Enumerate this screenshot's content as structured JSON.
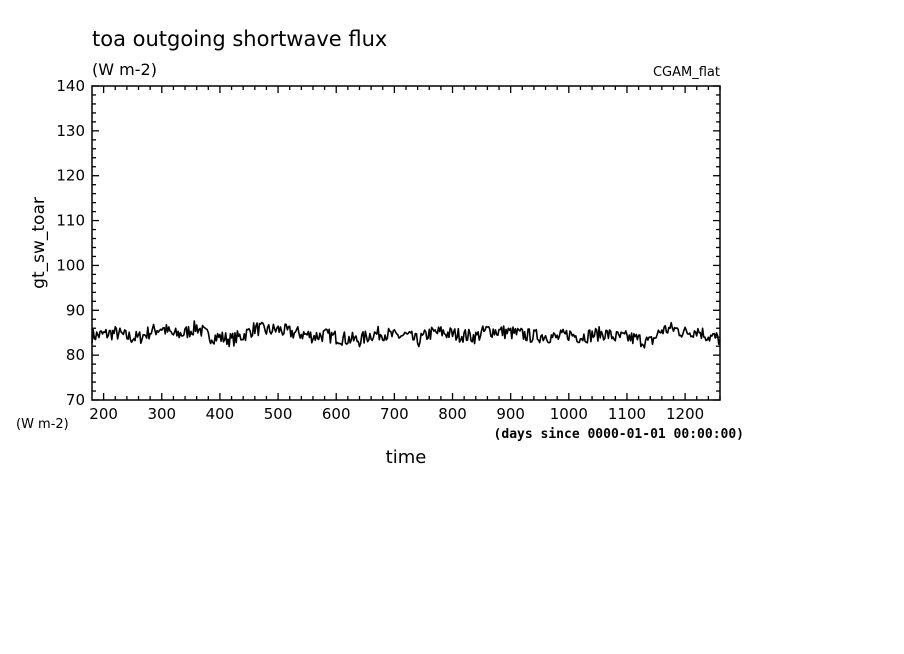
{
  "chart_data": {
    "type": "line",
    "title": "toa outgoing shortwave flux",
    "subtitle": "(W m-2)",
    "run_label": "CGAM_flat",
    "xlabel": "time",
    "x_units": "(days since 0000-01-01 00:00:00)",
    "ylabel": "gt_sw_toar",
    "y_units": "(W m-2)",
    "xlim": [
      180,
      1260
    ],
    "ylim": [
      70,
      140
    ],
    "x_ticks": [
      200,
      300,
      400,
      500,
      600,
      700,
      800,
      900,
      1000,
      1100,
      1200
    ],
    "y_ticks": [
      70,
      80,
      90,
      100,
      110,
      120,
      130,
      140
    ],
    "grid": false,
    "line_color": "#000000",
    "series": [
      {
        "x": [
          180,
          200,
          220,
          240,
          260,
          280,
          300,
          320,
          340,
          360,
          380,
          400,
          420,
          440,
          460,
          480,
          500,
          520,
          540,
          560,
          580,
          600,
          620,
          640,
          660,
          680,
          700,
          720,
          740,
          760,
          780,
          800,
          820,
          840,
          860,
          880,
          900,
          920,
          940,
          960,
          980,
          1000,
          1020,
          1040,
          1060,
          1080,
          1100,
          1120,
          1140,
          1160,
          1180,
          1200,
          1220,
          1240,
          1260
        ],
        "y": [
          84.3,
          84.6,
          85.0,
          84.1,
          83.8,
          85.2,
          86.1,
          84.5,
          84.9,
          86.3,
          84.2,
          84.0,
          83.4,
          84.4,
          86.0,
          85.5,
          85.7,
          85.1,
          84.8,
          84.2,
          84.5,
          84.0,
          83.6,
          83.3,
          84.6,
          84.9,
          84.2,
          84.4,
          83.1,
          84.8,
          85.1,
          84.7,
          84.4,
          84.1,
          85.6,
          85.3,
          85.0,
          84.6,
          84.2,
          84.4,
          83.8,
          84.7,
          84.1,
          84.5,
          84.9,
          84.0,
          83.9,
          83.5,
          82.8,
          85.6,
          85.9,
          85.0,
          85.6,
          84.2,
          83.6
        ]
      }
    ]
  }
}
